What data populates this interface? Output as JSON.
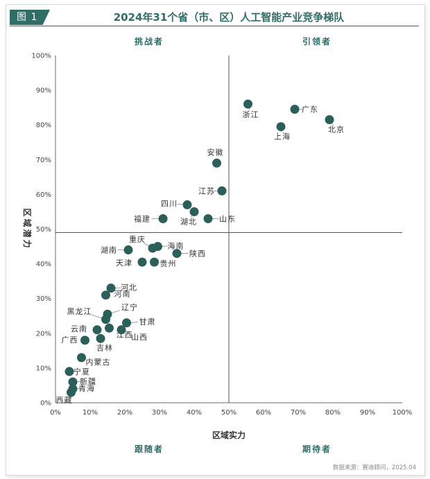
{
  "figure": {
    "tag": "图 1",
    "title": "2024年31个省（市、区）人工智能产业竞争梯队",
    "source": "数据来源：赛迪顾问，2025.04"
  },
  "colors": {
    "accent": "#2f6d66",
    "point": "#2b5f59",
    "divider": "#555555"
  },
  "chart_data": {
    "type": "scatter",
    "title": "2024年31个省（市、区）人工智能产业竞争梯队",
    "xlabel": "区域实力",
    "ylabel": "区域潜力",
    "xlim": [
      0,
      100
    ],
    "ylim": [
      0,
      100
    ],
    "x_ticks": [
      "0%",
      "10%",
      "20%",
      "30%",
      "40%",
      "50%",
      "60%",
      "70%",
      "80%",
      "90%",
      "100%"
    ],
    "y_ticks": [
      "0%",
      "10%",
      "20%",
      "30%",
      "40%",
      "50%",
      "60%",
      "70%",
      "80%",
      "90%",
      "100%"
    ],
    "grid": false,
    "dividers": {
      "x": 50,
      "y": 49
    },
    "quadrant_labels": {
      "top_left": "挑战者",
      "top_right": "引领者",
      "bottom_left": "跟随者",
      "bottom_right": "期待者"
    },
    "points": [
      {
        "name": "北京",
        "x": 79,
        "y": 81.5
      },
      {
        "name": "广东",
        "x": 69,
        "y": 84.5
      },
      {
        "name": "上海",
        "x": 65,
        "y": 79.5
      },
      {
        "name": "浙江",
        "x": 55.5,
        "y": 86
      },
      {
        "name": "安徽",
        "x": 46.5,
        "y": 69
      },
      {
        "name": "江苏",
        "x": 48,
        "y": 61
      },
      {
        "name": "四川",
        "x": 38,
        "y": 57
      },
      {
        "name": "湖北",
        "x": 40,
        "y": 55
      },
      {
        "name": "山东",
        "x": 44,
        "y": 53
      },
      {
        "name": "福建",
        "x": 31,
        "y": 53
      },
      {
        "name": "重庆",
        "x": 28,
        "y": 44.5
      },
      {
        "name": "海南",
        "x": 29.5,
        "y": 45
      },
      {
        "name": "湖南",
        "x": 21,
        "y": 44
      },
      {
        "name": "陕西",
        "x": 35,
        "y": 43
      },
      {
        "name": "天津",
        "x": 25,
        "y": 40.5
      },
      {
        "name": "贵州",
        "x": 28.5,
        "y": 40.5
      },
      {
        "name": "河北",
        "x": 16,
        "y": 33
      },
      {
        "name": "河南",
        "x": 14.5,
        "y": 31
      },
      {
        "name": "辽宁",
        "x": 15,
        "y": 25.5
      },
      {
        "name": "黑龙江",
        "x": 14.5,
        "y": 24
      },
      {
        "name": "甘肃",
        "x": 20.5,
        "y": 23
      },
      {
        "name": "云南",
        "x": 12,
        "y": 21
      },
      {
        "name": "江西",
        "x": 15.5,
        "y": 21.5
      },
      {
        "name": "山西",
        "x": 19,
        "y": 21
      },
      {
        "name": "吉林",
        "x": 13,
        "y": 18.5
      },
      {
        "name": "广西",
        "x": 8.5,
        "y": 18
      },
      {
        "name": "内蒙古",
        "x": 7.5,
        "y": 13
      },
      {
        "name": "宁夏",
        "x": 4,
        "y": 9
      },
      {
        "name": "新疆",
        "x": 5,
        "y": 6
      },
      {
        "name": "青海",
        "x": 5,
        "y": 4
      },
      {
        "name": "西藏",
        "x": 4.5,
        "y": 3
      }
    ]
  }
}
